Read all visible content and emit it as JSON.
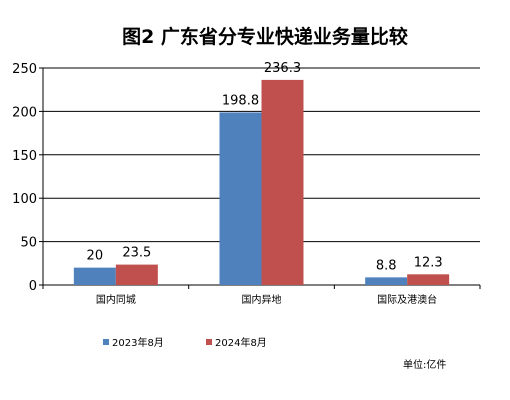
{
  "chart_data": {
    "type": "bar",
    "title": "图2  广东省分专业快递业务量比较",
    "categories": [
      "国内同城",
      "国内异地",
      "国际及港澳台"
    ],
    "series": [
      {
        "name": "2023年8月",
        "values": [
          20,
          198.8,
          8.8
        ],
        "color": "#4F81BD"
      },
      {
        "name": "2024年8月",
        "values": [
          23.5,
          236.3,
          12.3
        ],
        "color": "#C0504D"
      }
    ],
    "data_labels": [
      [
        "20",
        "198.8",
        "8.8"
      ],
      [
        "23.5",
        "236.3",
        "12.3"
      ]
    ],
    "ylim": [
      0,
      250
    ],
    "yticks": [
      "0",
      "50",
      "100",
      "150",
      "200",
      "250"
    ],
    "ytick_values": [
      0,
      50,
      100,
      150,
      200,
      250
    ],
    "grid": true,
    "legend_position": "bottom-left",
    "unit_note": "单位:亿件",
    "xlabel": "",
    "ylabel": ""
  }
}
